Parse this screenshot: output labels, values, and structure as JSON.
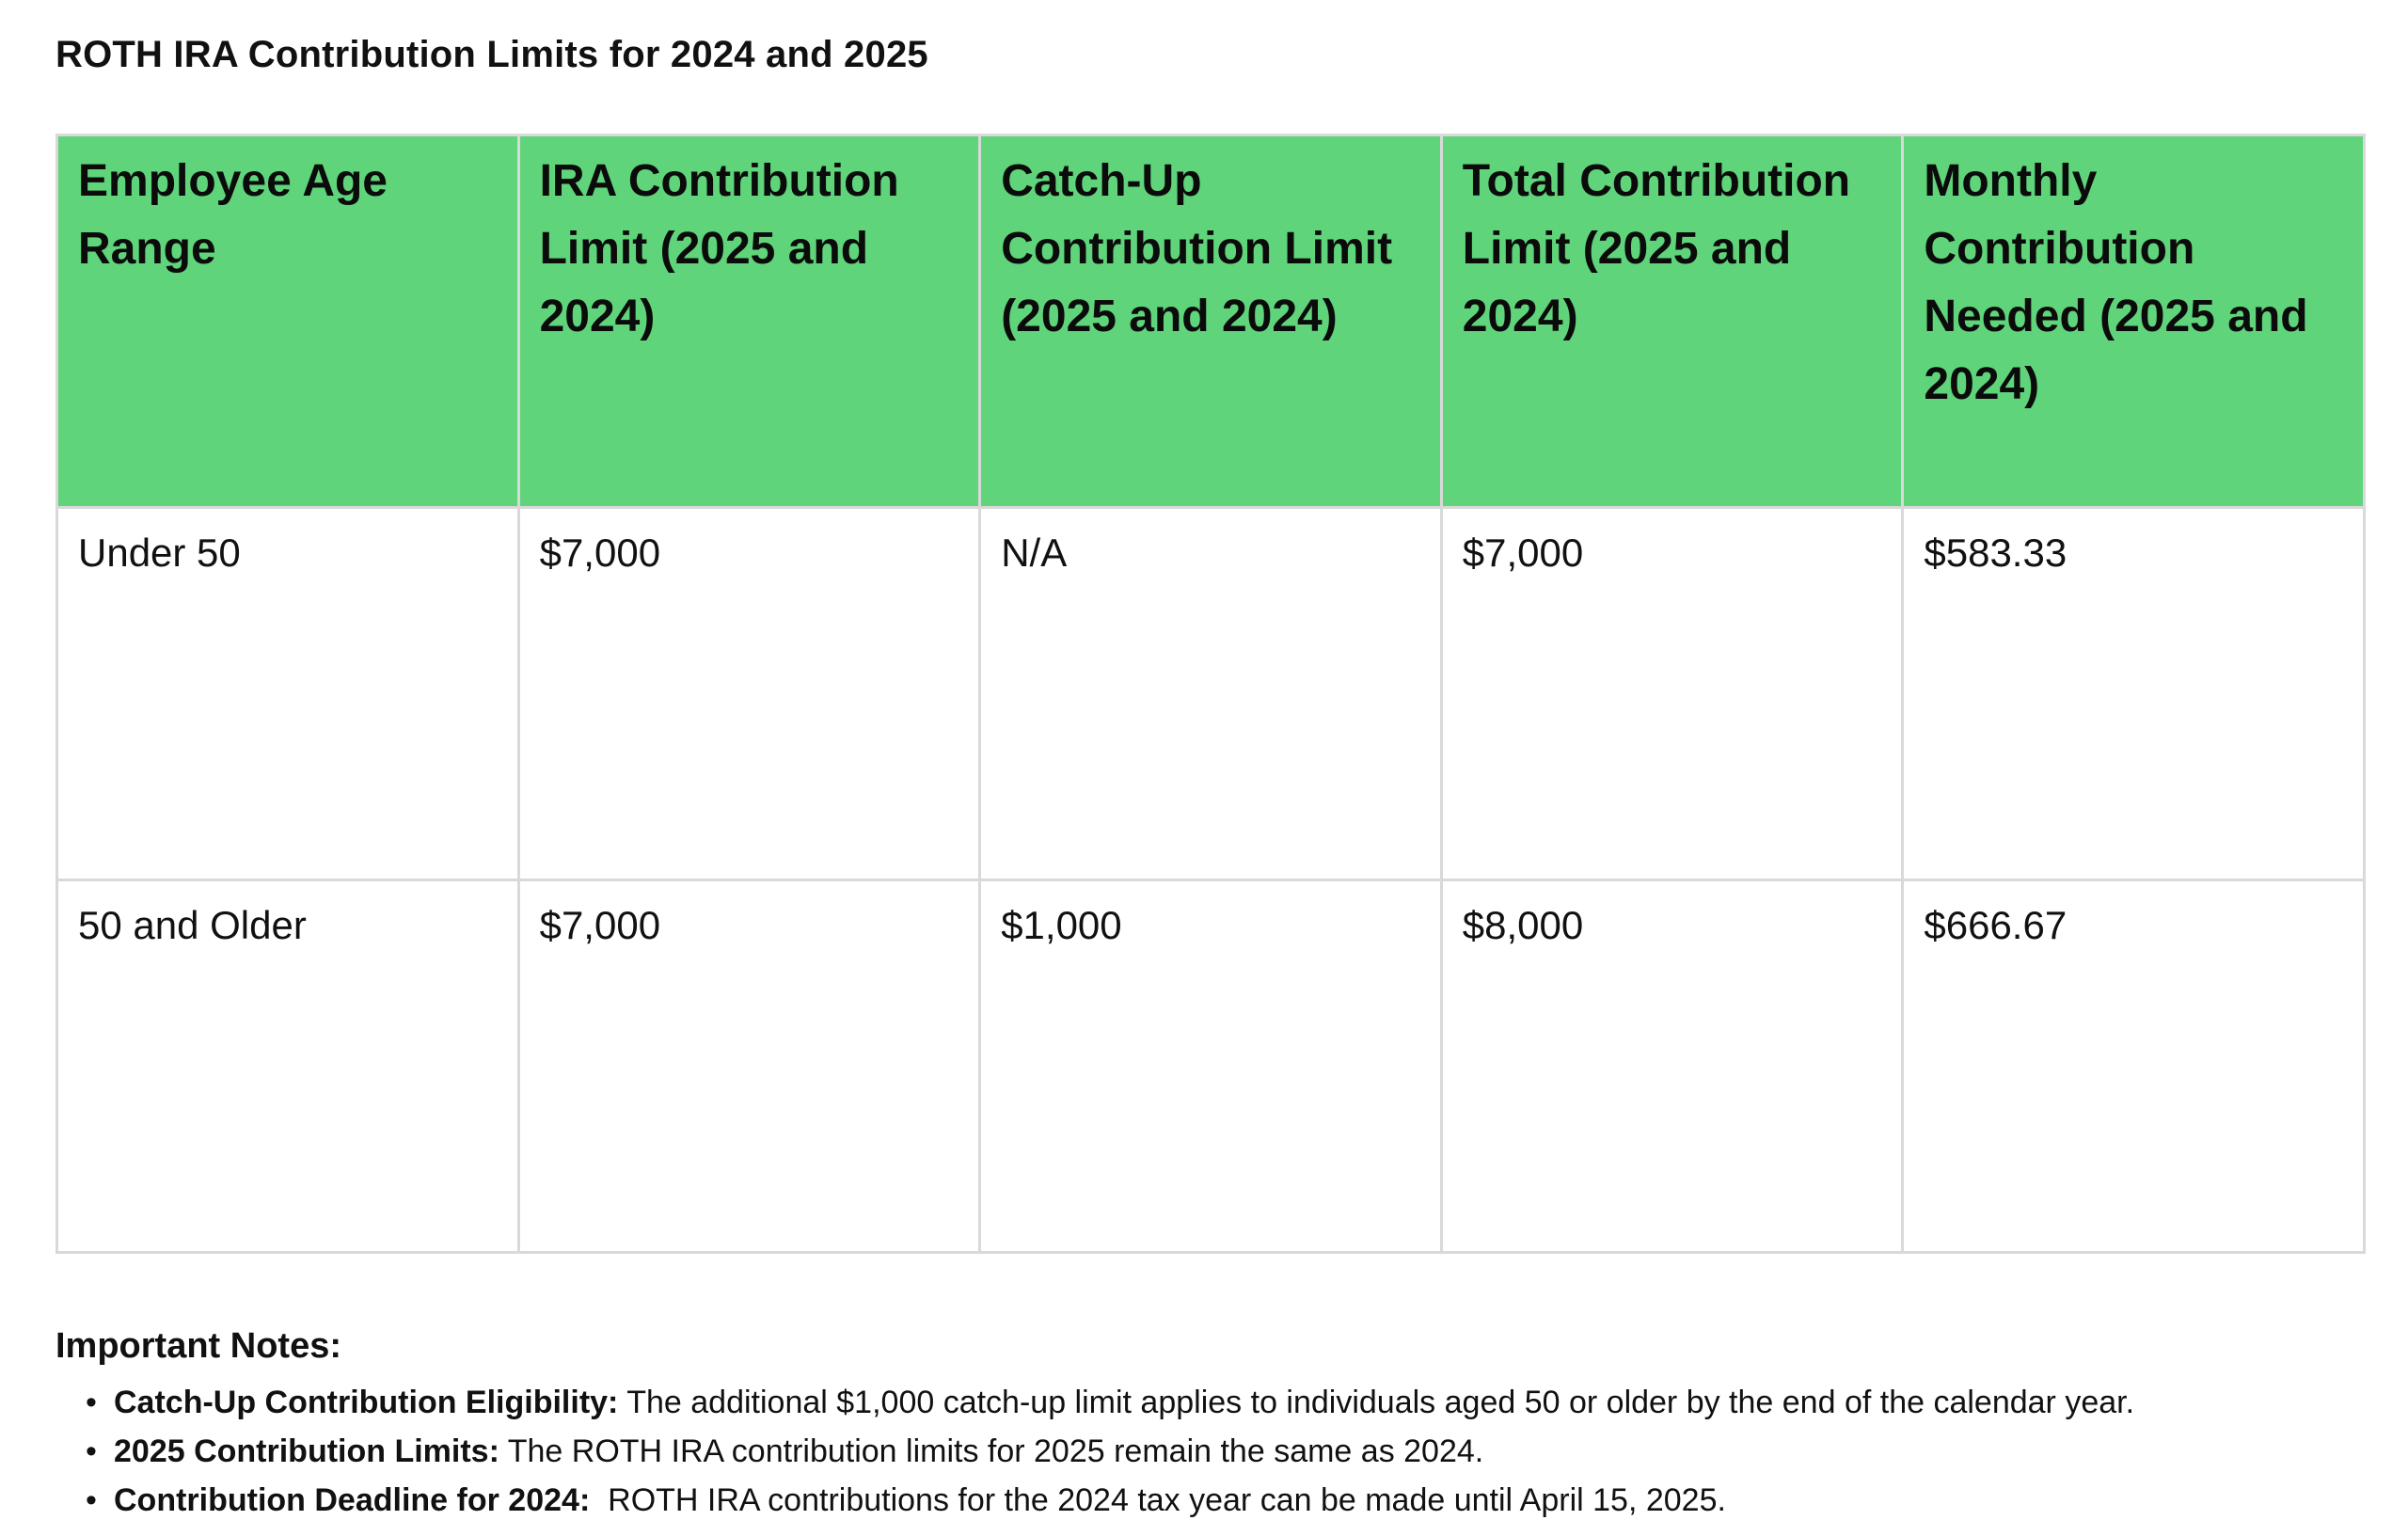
{
  "title": "ROTH IRA Contribution Limits for 2024 and 2025",
  "table": {
    "headers": [
      "Employee Age Range",
      "IRA Contribution Limit (2025 and 2024)",
      "Catch-Up Contribution Limit (2025 and 2024)",
      "Total Contribution Limit (2025 and 2024)",
      "Monthly Contribution Needed (2025 and 2024)"
    ],
    "rows": [
      [
        "Under 50",
        "$7,000",
        "N/A",
        "$7,000",
        "$583.33"
      ],
      [
        "50 and Older",
        "$7,000",
        "$1,000",
        "$8,000",
        "$666.67"
      ]
    ]
  },
  "notes": {
    "heading": "Important Notes:",
    "items": [
      {
        "label": "Catch-Up Contribution Eligibility:",
        "text": " The additional $1,000 catch-up limit applies to individuals aged 50 or older by the end of the calendar year."
      },
      {
        "label": "2025 Contribution Limits:",
        "text": " The ROTH IRA contribution limits for 2025 remain the same as 2024."
      },
      {
        "label": "Contribution Deadline for 2024:",
        "text": "  ROTH IRA contributions for the 2024 tax year can be made until April 15, 2025."
      }
    ]
  },
  "colors": {
    "header_background": "#5fd47a",
    "grid_line": "#d9d9d9"
  }
}
